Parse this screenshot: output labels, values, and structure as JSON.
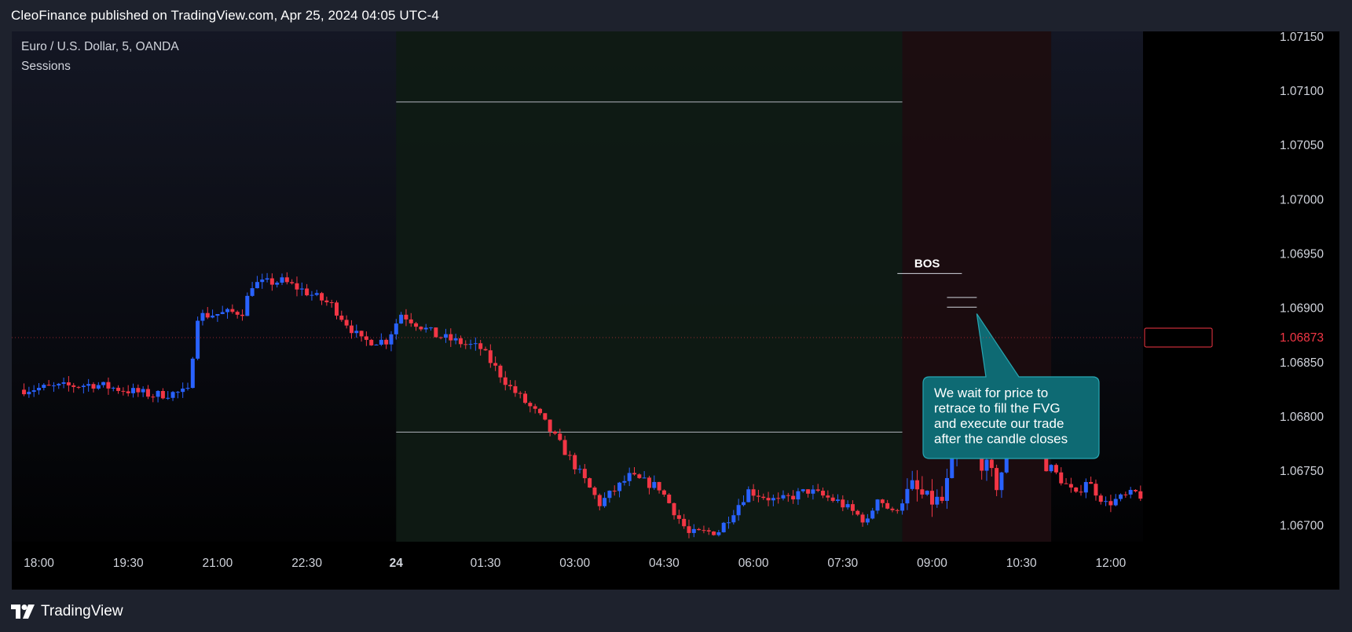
{
  "header": {
    "published_text": "CleoFinance published on TradingView.com, Apr 25, 2024 04:05 UTC-4"
  },
  "footer": {
    "brand": "TradingView",
    "logo_icon": "tradingview-logo-icon"
  },
  "colors": {
    "bull": "#2962ff",
    "bear": "#f23645",
    "session_asia": "#0f1a14",
    "session_london": "#1c0d10",
    "callout": "#0e6a73",
    "callout_border": "#27a7b3"
  },
  "chart_data": {
    "type": "candlestick",
    "symbol_line": "Euro / U.S. Dollar, 5, OANDA",
    "indicator": "Sessions",
    "y_ticks": [
      "1.07150",
      "1.07100",
      "1.07050",
      "1.07000",
      "1.06950",
      "1.06900",
      "1.06850",
      "1.06800",
      "1.06750",
      "1.06700"
    ],
    "ylim": [
      1.06685,
      1.07155
    ],
    "x_ticks": [
      "18:00",
      "19:30",
      "21:00",
      "22:30",
      "24",
      "01:30",
      "03:00",
      "04:30",
      "06:00",
      "07:30",
      "09:00",
      "10:30",
      "12:00"
    ],
    "current_price": "1.06873",
    "sessions": [
      {
        "from": "00:00",
        "to": "08:30",
        "kind": "asia"
      },
      {
        "from": "08:30",
        "to": "11:00",
        "kind": "london"
      }
    ],
    "range_high": 1.0709,
    "range_low": 1.06786,
    "range_from": "00:00",
    "range_to": "08:30",
    "bos_label": "BOS",
    "bos_level": 1.06932,
    "annotation": "We wait for price to retrace to fill the FVG and execute our trade after the candle closes",
    "trend_points": [
      [
        "17:45",
        1.06825
      ],
      [
        "19:00",
        1.0683
      ],
      [
        "20:00",
        1.0682
      ],
      [
        "20:35",
        1.06823
      ],
      [
        "20:45",
        1.06893
      ],
      [
        "21:30",
        1.06897
      ],
      [
        "21:40",
        1.06922
      ],
      [
        "22:10",
        1.06925
      ],
      [
        "22:30",
        1.06917
      ],
      [
        "23:00",
        1.06903
      ],
      [
        "23:30",
        1.0687
      ],
      [
        "23:55",
        1.0687
      ],
      [
        "00:10",
        1.06895
      ],
      [
        "00:45",
        1.06875
      ],
      [
        "01:30",
        1.06863
      ],
      [
        "02:00",
        1.06827
      ],
      [
        "02:30",
        1.068
      ],
      [
        "03:00",
        1.06762
      ],
      [
        "03:30",
        1.0672
      ],
      [
        "04:00",
        1.06745
      ],
      [
        "04:30",
        1.06735
      ],
      [
        "05:00",
        1.06692
      ],
      [
        "05:30",
        1.06695
      ],
      [
        "06:00",
        1.06732
      ],
      [
        "06:30",
        1.06722
      ],
      [
        "07:00",
        1.06732
      ],
      [
        "07:30",
        1.06722
      ],
      [
        "08:00",
        1.06703
      ],
      [
        "08:10",
        1.06727
      ],
      [
        "08:25",
        1.06711
      ],
      [
        "08:45",
        1.06735
      ],
      [
        "09:00",
        1.06723
      ],
      [
        "09:15",
        1.06722
      ],
      [
        "09:30",
        1.0677
      ],
      [
        "09:45",
        1.06773
      ],
      [
        "10:10",
        1.06738
      ],
      [
        "10:20",
        1.06762
      ],
      [
        "10:40",
        1.06795
      ],
      [
        "11:00",
        1.06758
      ],
      [
        "11:15",
        1.06742
      ],
      [
        "11:30",
        1.06727
      ],
      [
        "11:40",
        1.06742
      ],
      [
        "12:00",
        1.0672
      ],
      [
        "12:30",
        1.0673
      ],
      [
        "12:40",
        1.06725
      ]
    ]
  }
}
